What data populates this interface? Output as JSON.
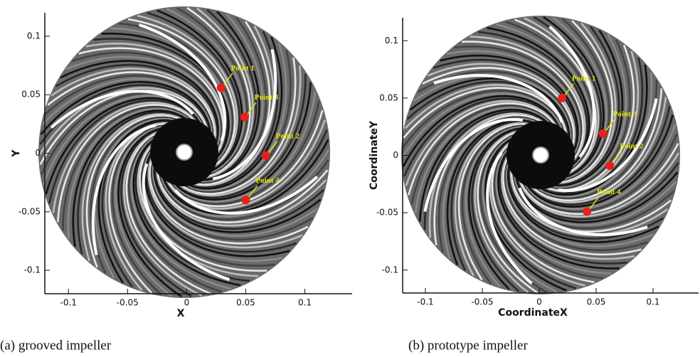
{
  "chart_data": [
    {
      "type": "scatter",
      "xlabel": "X",
      "ylabel": "Y",
      "caption": "(a) grooved impeller",
      "xlim": [
        -0.12,
        0.14
      ],
      "ylim": [
        -0.12,
        0.12
      ],
      "xticks": [
        -0.1,
        -0.05,
        0,
        0.05,
        0.1
      ],
      "yticks": [
        -0.1,
        -0.05,
        0,
        0.05,
        0.1
      ],
      "point_color": "#e8201c",
      "label_color": "#e6e600",
      "labels": [
        "Point 1",
        "Point 3",
        "Point 2",
        "Point 4"
      ],
      "x": [
        0.029,
        0.049,
        0.067,
        0.05
      ],
      "y": [
        0.056,
        0.031,
        -0.002,
        -0.04
      ]
    },
    {
      "type": "scatter",
      "xlabel": "CoordinateX",
      "ylabel": "CoordinateY",
      "caption": "(b) prototype impeller",
      "xlim": [
        -0.12,
        0.14
      ],
      "ylim": [
        -0.12,
        0.12
      ],
      "xticks": [
        -0.1,
        -0.05,
        0,
        0.05,
        0.1
      ],
      "yticks": [
        -0.1,
        -0.05,
        0,
        0.05,
        0.1
      ],
      "point_color": "#e8201c",
      "label_color": "#e6e600",
      "labels": [
        "Point 1",
        "Point 3",
        "Point 2",
        "Point 4"
      ],
      "x": [
        0.02,
        0.056,
        0.062,
        0.042
      ],
      "y": [
        0.05,
        0.019,
        -0.009,
        -0.049
      ]
    }
  ]
}
